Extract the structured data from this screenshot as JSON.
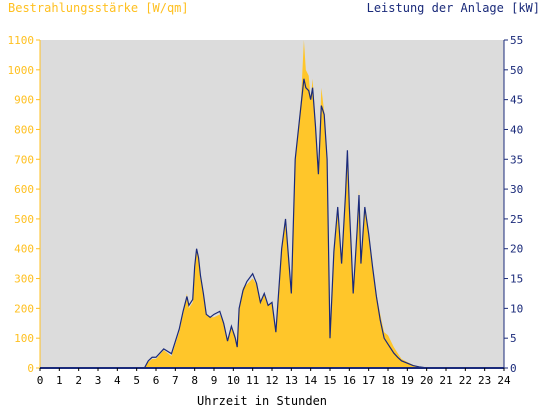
{
  "chart_data": {
    "type": "area",
    "title_left": "Bestrahlungsstärke [W/qm]",
    "title_right": "Leistung der Anlage [kW]",
    "xlabel": "Uhrzeit in Stunden",
    "x_range": [
      0,
      24
    ],
    "x_ticks": [
      "0",
      "1",
      "2",
      "3",
      "4",
      "5",
      "6",
      "7",
      "8",
      "9",
      "10",
      "11",
      "12",
      "13",
      "14",
      "15",
      "16",
      "17",
      "18",
      "19",
      "20",
      "21",
      "22",
      "23",
      "24"
    ],
    "y_left_range": [
      0,
      1100
    ],
    "y_left_ticks": [
      "0",
      "100",
      "200",
      "300",
      "400",
      "500",
      "600",
      "700",
      "800",
      "900",
      "1000",
      "1100"
    ],
    "y_right_range": [
      0,
      55
    ],
    "y_right_ticks": [
      "0",
      "5",
      "10",
      "15",
      "20",
      "25",
      "30",
      "35",
      "40",
      "45",
      "50",
      "55"
    ],
    "colors": {
      "irradiance_fill": "#ffc62a",
      "power_line": "#1a2a7a",
      "plot_background": "#dcdcdc",
      "left_axis_text": "#ffc020",
      "right_axis_text": "#1a2a7a",
      "zero_line": "#1a2a7a"
    },
    "series": [
      {
        "name": "Bestrahlungsstärke [W/qm]",
        "axis": "left",
        "x": [
          0,
          5.4,
          5.6,
          5.8,
          6.0,
          6.4,
          6.8,
          7.2,
          7.4,
          7.6,
          7.7,
          7.9,
          8.0,
          8.1,
          8.2,
          8.3,
          8.45,
          8.6,
          8.8,
          9.0,
          9.3,
          9.5,
          9.7,
          9.9,
          10.1,
          10.2,
          10.3,
          10.5,
          10.7,
          11.0,
          11.2,
          11.4,
          11.6,
          11.8,
          12.0,
          12.2,
          12.5,
          12.7,
          13.0,
          13.2,
          13.5,
          13.65,
          13.75,
          13.9,
          14.0,
          14.1,
          14.25,
          14.4,
          14.55,
          14.7,
          14.85,
          15.0,
          15.2,
          15.4,
          15.6,
          15.8,
          15.9,
          16.0,
          16.1,
          16.2,
          16.4,
          16.5,
          16.6,
          16.8,
          17.0,
          17.2,
          17.4,
          17.6,
          17.8,
          18.0,
          18.3,
          18.5,
          18.7,
          19.0,
          19.3,
          19.6,
          19.8,
          20.0,
          24
        ],
        "values": [
          0,
          0,
          20,
          30,
          30,
          60,
          40,
          120,
          180,
          250,
          200,
          220,
          330,
          400,
          360,
          300,
          250,
          180,
          170,
          170,
          180,
          150,
          90,
          140,
          110,
          75,
          200,
          270,
          280,
          300,
          280,
          220,
          250,
          210,
          220,
          120,
          400,
          500,
          250,
          700,
          900,
          1100,
          1000,
          980,
          900,
          970,
          820,
          650,
          940,
          860,
          720,
          100,
          400,
          530,
          350,
          580,
          720,
          540,
          390,
          250,
          460,
          600,
          350,
          540,
          460,
          330,
          250,
          180,
          120,
          110,
          70,
          50,
          30,
          20,
          10,
          5,
          2,
          0,
          0
        ]
      },
      {
        "name": "Leistung der Anlage [kW]",
        "axis": "right",
        "x": [
          0,
          5.4,
          5.6,
          5.8,
          6.0,
          6.4,
          6.8,
          7.2,
          7.4,
          7.6,
          7.7,
          7.9,
          8.0,
          8.1,
          8.2,
          8.3,
          8.45,
          8.6,
          8.8,
          9.0,
          9.3,
          9.5,
          9.7,
          9.9,
          10.1,
          10.2,
          10.3,
          10.5,
          10.7,
          11.0,
          11.2,
          11.4,
          11.6,
          11.8,
          12.0,
          12.2,
          12.5,
          12.7,
          13.0,
          13.2,
          13.5,
          13.65,
          13.75,
          13.9,
          14.0,
          14.1,
          14.25,
          14.4,
          14.55,
          14.7,
          14.85,
          15.0,
          15.2,
          15.4,
          15.6,
          15.8,
          15.9,
          16.0,
          16.1,
          16.2,
          16.4,
          16.5,
          16.6,
          16.8,
          17.0,
          17.2,
          17.4,
          17.6,
          17.8,
          18.0,
          18.3,
          18.5,
          18.7,
          19.0,
          19.3,
          19.6,
          19.8,
          20.0,
          24
        ],
        "values": [
          0,
          0,
          1.2,
          1.8,
          1.8,
          3.2,
          2.4,
          6.5,
          9.5,
          12.0,
          10.5,
          11.5,
          17.0,
          20.0,
          18.5,
          15.5,
          12.5,
          9.0,
          8.5,
          9.0,
          9.5,
          7.5,
          4.5,
          7.0,
          5.0,
          3.5,
          10.0,
          13.0,
          14.5,
          15.8,
          14.2,
          11.0,
          12.5,
          10.5,
          11.0,
          6.0,
          20.0,
          25.0,
          12.5,
          35.0,
          44.0,
          48.5,
          47.0,
          46.5,
          45.0,
          47.0,
          40.5,
          32.5,
          44.0,
          42.5,
          35.0,
          5.0,
          19.5,
          27.0,
          17.5,
          29.0,
          36.5,
          27.0,
          20.0,
          12.5,
          23.0,
          29.0,
          17.5,
          27.0,
          22.5,
          17.0,
          12.0,
          8.0,
          5.0,
          4.0,
          2.5,
          1.8,
          1.2,
          0.8,
          0.4,
          0.2,
          0.1,
          0,
          0
        ]
      }
    ],
    "grid": false,
    "legend": "none"
  }
}
